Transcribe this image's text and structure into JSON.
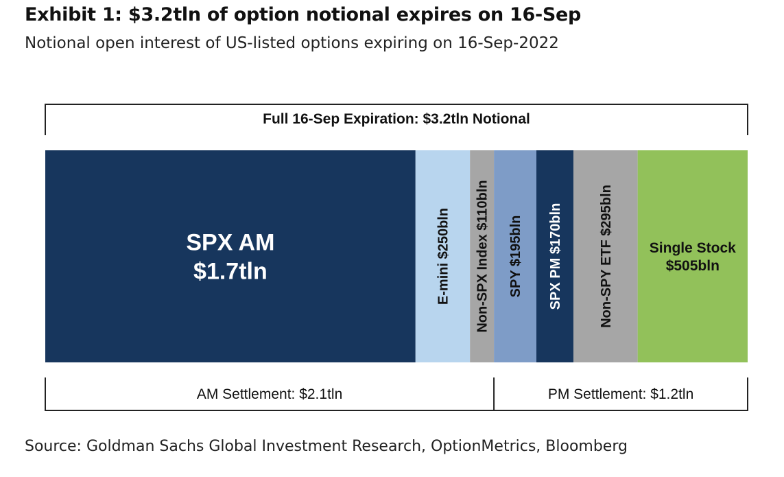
{
  "header": {
    "title": "Exhibit 1: $3.2tln of option notional expires on 16-Sep",
    "subtitle": "Notional open interest of US-listed options expiring on 16-Sep-2022"
  },
  "footer": {
    "source": "Source: Goldman Sachs Global Investment Research, OptionMetrics, Bloomberg"
  },
  "chart_data": {
    "type": "bar",
    "subtype": "stacked-horizontal-100pct",
    "unit": "USD bln",
    "categories": [
      "SPX AM",
      "E-mini",
      "Non-SPX Index",
      "SPY",
      "SPX PM",
      "Non-SPY ETF",
      "Single Stock"
    ],
    "values": [
      1700,
      250,
      110,
      195,
      170,
      295,
      505
    ],
    "segments": [
      {
        "name": "SPX AM",
        "value": 1700,
        "label_lines": [
          "SPX AM",
          "$1.7tln"
        ],
        "orientation": "horizontal",
        "color": "#17365d",
        "text_color": "#ffffff",
        "settlement": "AM"
      },
      {
        "name": "E-mini",
        "value": 250,
        "label_lines": [
          "E-mini $250bln"
        ],
        "orientation": "vertical",
        "color": "#b8d5ee",
        "text_color": "#111111",
        "settlement": "AM"
      },
      {
        "name": "Non-SPX Index",
        "value": 110,
        "label_lines": [
          "Non-SPX Index $110bln"
        ],
        "orientation": "vertical",
        "color": "#a6a6a6",
        "text_color": "#111111",
        "settlement": "AM"
      },
      {
        "name": "SPY",
        "value": 195,
        "label_lines": [
          "SPY $195bln"
        ],
        "orientation": "vertical",
        "color": "#7e9cc7",
        "text_color": "#111111",
        "settlement": "PM"
      },
      {
        "name": "SPX PM",
        "value": 170,
        "label_lines": [
          "SPX PM $170bln"
        ],
        "orientation": "vertical",
        "color": "#17365d",
        "text_color": "#ffffff",
        "settlement": "PM"
      },
      {
        "name": "Non-SPY ETF",
        "value": 295,
        "label_lines": [
          "Non-SPY ETF $295bln"
        ],
        "orientation": "vertical",
        "color": "#a6a6a6",
        "text_color": "#111111",
        "settlement": "PM"
      },
      {
        "name": "Single Stock",
        "value": 505,
        "label_lines": [
          "Single Stock",
          "$505bln"
        ],
        "orientation": "horizontal",
        "color": "#92c15a",
        "text_color": "#111111",
        "settlement": "PM"
      }
    ],
    "brackets": {
      "total": {
        "label": "Full 16-Sep Expiration: $3.2tln Notional",
        "value": 3200
      },
      "groups": [
        {
          "name": "AM",
          "label": "AM Settlement: $2.1tln",
          "value": 2100
        },
        {
          "name": "PM",
          "label": "PM Settlement: $1.2tln",
          "value": 1200
        }
      ]
    }
  }
}
